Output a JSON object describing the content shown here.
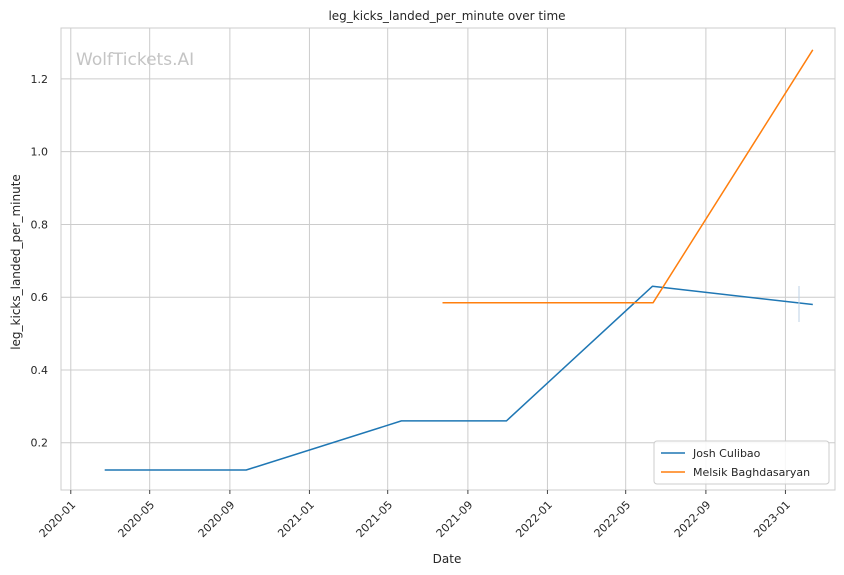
{
  "chart_data": {
    "type": "line",
    "title": "leg_kicks_landed_per_minute over time",
    "xlabel": "Date",
    "ylabel": "leg_kicks_landed_per_minute",
    "watermark": "WolfTickets.AI",
    "x_ticks": [
      "2020-01",
      "2020-05",
      "2020-09",
      "2021-01",
      "2021-05",
      "2021-09",
      "2022-01",
      "2022-05",
      "2022-09",
      "2023-01"
    ],
    "y_ticks": [
      "0.2",
      "0.4",
      "0.6",
      "0.8",
      "1.0",
      "1.2"
    ],
    "xlim": [
      "2019-12-17",
      "2023-03-18"
    ],
    "ylim": [
      0.07,
      1.34
    ],
    "grid": true,
    "legend_position": "bottom-right",
    "series": [
      {
        "name": "Josh Culibao",
        "color": "#1f77b4",
        "points": [
          {
            "x": "2020-02-22",
            "y": 0.125
          },
          {
            "x": "2020-09-26",
            "y": 0.125
          },
          {
            "x": "2021-05-22",
            "y": 0.26
          },
          {
            "x": "2021-10-30",
            "y": 0.26
          },
          {
            "x": "2022-06-11",
            "y": 0.63
          },
          {
            "x": "2023-02-12",
            "y": 0.58
          }
        ]
      },
      {
        "name": "Melsik Baghdasaryan",
        "color": "#ff7f0e",
        "points": [
          {
            "x": "2021-07-24",
            "y": 0.585
          },
          {
            "x": "2022-06-12",
            "y": 0.585
          },
          {
            "x": "2023-02-12",
            "y": 1.28
          }
        ]
      }
    ]
  }
}
